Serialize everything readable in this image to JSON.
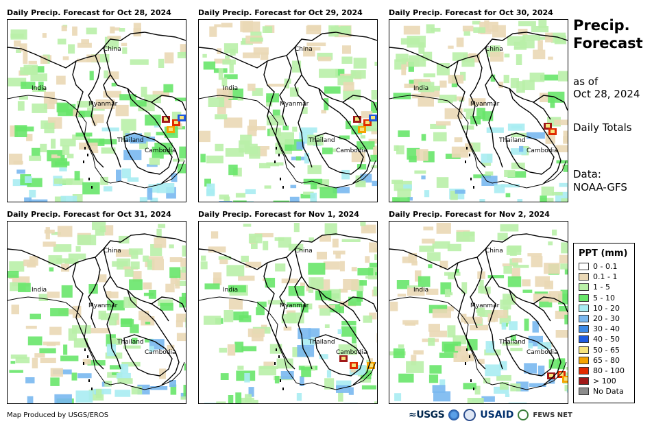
{
  "panels": [
    {
      "title": "Daily Precip. Forecast for Oct 28, 2024",
      "intensity": 0.55,
      "hotspot": "vietnam-north"
    },
    {
      "title": "Daily Precip. Forecast for Oct 29, 2024",
      "intensity": 0.45,
      "hotspot": "vietnam-north"
    },
    {
      "title": "Daily Precip. Forecast for Oct 30, 2024",
      "intensity": 0.5,
      "hotspot": "vietnam-central"
    },
    {
      "title": "Daily Precip. Forecast for Oct 31, 2024",
      "intensity": 0.35,
      "hotspot": "none"
    },
    {
      "title": "Daily Precip. Forecast for Nov 1, 2024",
      "intensity": 0.4,
      "hotspot": "cambodia-south"
    },
    {
      "title": "Daily Precip. Forecast for Nov 2, 2024",
      "intensity": 0.5,
      "hotspot": "vietnam-south"
    }
  ],
  "country_labels": {
    "china": "China",
    "india": "India",
    "myanmar": "Myanmar",
    "thailand": "Thailand",
    "cambodia": "Cambodia"
  },
  "side": {
    "title_line1": "Precip.",
    "title_line2": "Forecast",
    "as_of_label": "as of",
    "as_of_date": "Oct 28, 2024",
    "totals": "Daily Totals",
    "data_label": "Data:",
    "data_source": "NOAA-GFS"
  },
  "legend": {
    "title": "PPT (mm)",
    "items": [
      {
        "label": "0 - 0.1",
        "color": "#ffffff"
      },
      {
        "label": "0.1 - 1",
        "color": "#ead8b5"
      },
      {
        "label": "1 - 5",
        "color": "#b9f0a8"
      },
      {
        "label": "5 - 10",
        "color": "#68e66a"
      },
      {
        "label": "10 - 20",
        "color": "#a8ecf2"
      },
      {
        "label": "20 - 30",
        "color": "#79b8f0"
      },
      {
        "label": "30 - 40",
        "color": "#3c8ae6"
      },
      {
        "label": "40 - 50",
        "color": "#1d5ae0"
      },
      {
        "label": "50 - 65",
        "color": "#f6e37c"
      },
      {
        "label": "65 - 80",
        "color": "#f5a300"
      },
      {
        "label": "80 - 100",
        "color": "#e02a00"
      },
      {
        "label": "> 100",
        "color": "#a01818"
      },
      {
        "label": "No Data",
        "color": "#8c8c8c"
      }
    ]
  },
  "credit": "Map Produced by USGS/EROS",
  "logos": {
    "usgs": "≈USGS",
    "usaid": "USAID",
    "fews": "FEWS NET"
  }
}
